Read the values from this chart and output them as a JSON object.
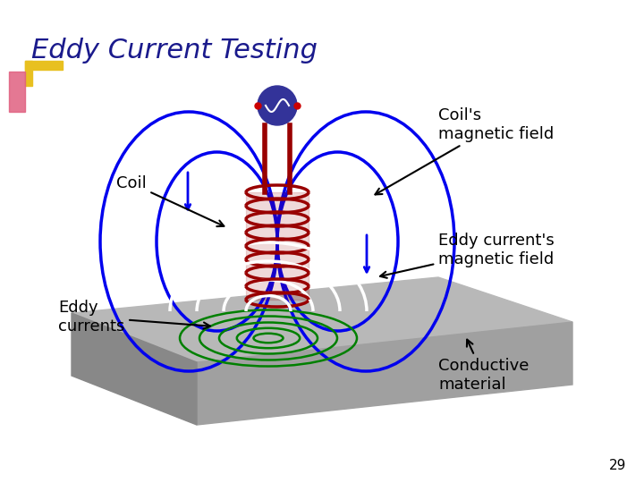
{
  "title": "Eddy Current Testing",
  "title_color": "#1a1a8c",
  "title_fontsize": 22,
  "bg_color": "#ffffff",
  "page_number": "29",
  "labels": {
    "coil": "Coil",
    "coil_mag": "Coil's\nmagnetic field",
    "eddy_mag": "Eddy current's\nmagnetic field",
    "eddy_curr": "Eddy\ncurrents",
    "conductive": "Conductive\nmaterial"
  },
  "colors": {
    "coil_wire": "#990000",
    "mag_field": "#0000ee",
    "eddy_green": "#008000",
    "plate_top": "#b8b8b8",
    "plate_side_left": "#888888",
    "plate_front": "#a0a0a0",
    "text": "#000000",
    "oscilloscope": "#333399",
    "accent_yellow": "#e8c020",
    "accent_pink": "#e06080"
  }
}
